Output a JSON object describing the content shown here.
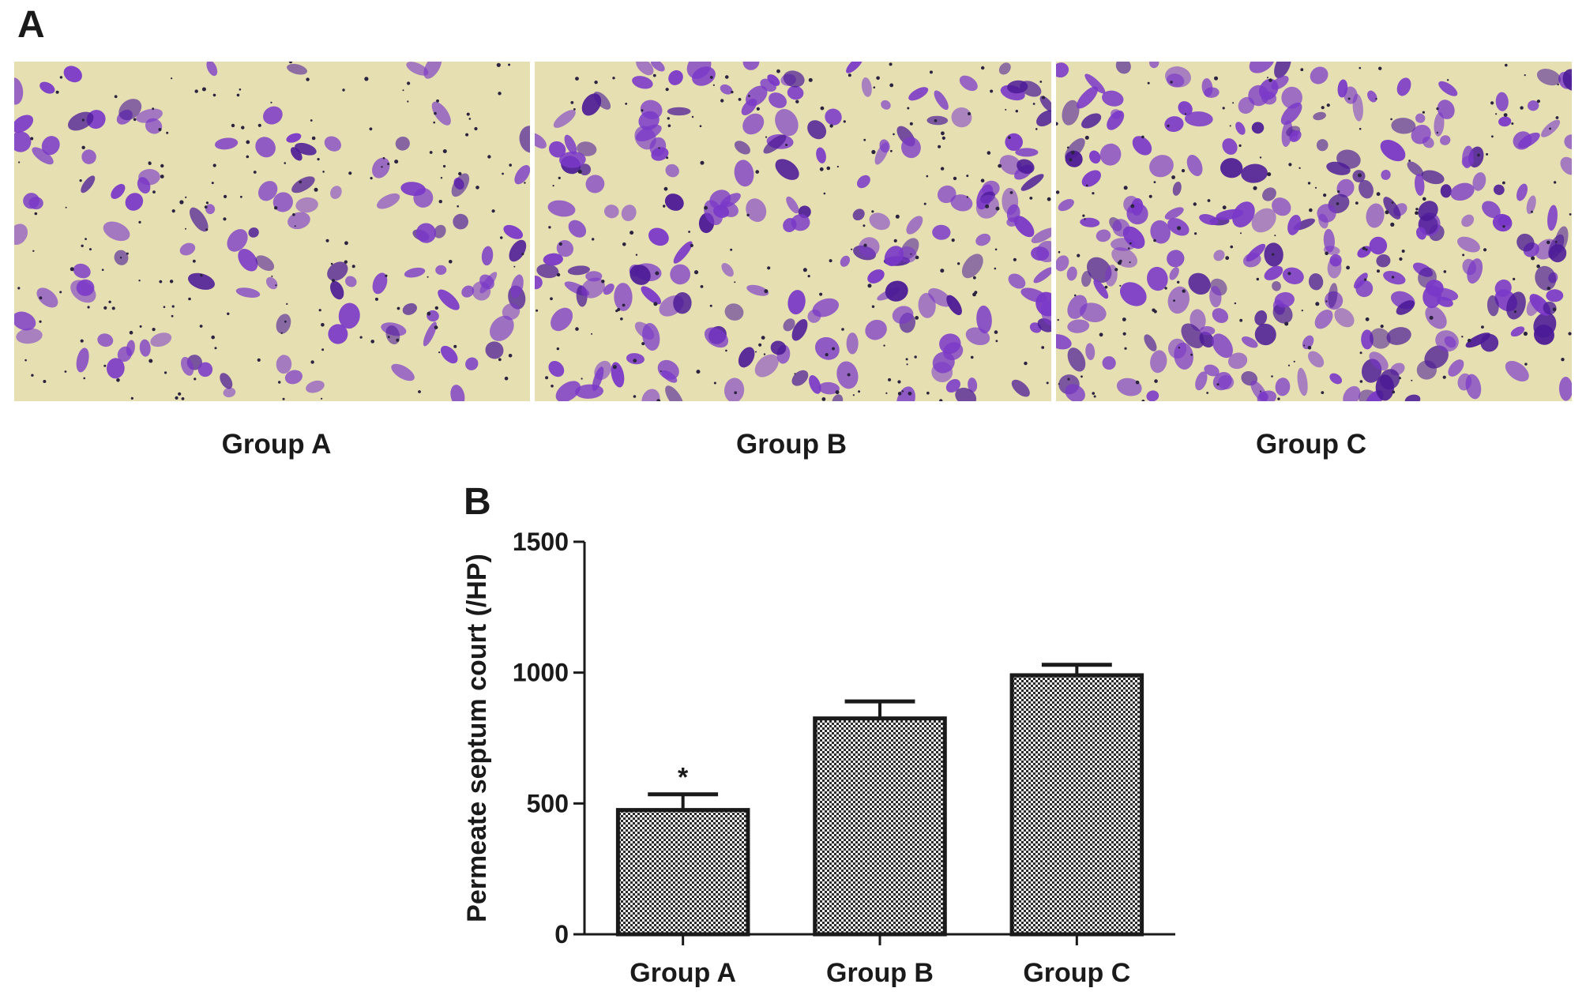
{
  "panels": {
    "a_letter": "A",
    "b_letter": "B"
  },
  "micrographs": [
    {
      "label": "Group A",
      "cell_density": 0.45
    },
    {
      "label": "Group B",
      "cell_density": 0.75
    },
    {
      "label": "Group C",
      "cell_density": 1.0
    }
  ],
  "colors": {
    "background_stain": "#e6dfb2",
    "cell_stain": "#7a38c8",
    "cell_stain_dark": "#4b1a96",
    "bar_pattern_dark": "#2a2a2a",
    "bar_pattern_light": "#f2f2f2",
    "axis": "#1a1a1a"
  },
  "chart_data": {
    "type": "bar",
    "categories": [
      "Group A",
      "Group B",
      "Group C"
    ],
    "values": [
      475,
      825,
      990
    ],
    "errors": [
      60,
      65,
      40
    ],
    "annotations": [
      {
        "category": "Group A",
        "text": "*"
      }
    ],
    "title": "",
    "xlabel": "",
    "ylabel": "Permeate septum court (/HP)",
    "ylim": [
      0,
      1500
    ],
    "yticks": [
      0,
      500,
      1000,
      1500
    ],
    "ytick_labels": [
      "0",
      "500",
      "1000",
      "1500"
    ],
    "grid": false,
    "pattern": "checkered"
  }
}
